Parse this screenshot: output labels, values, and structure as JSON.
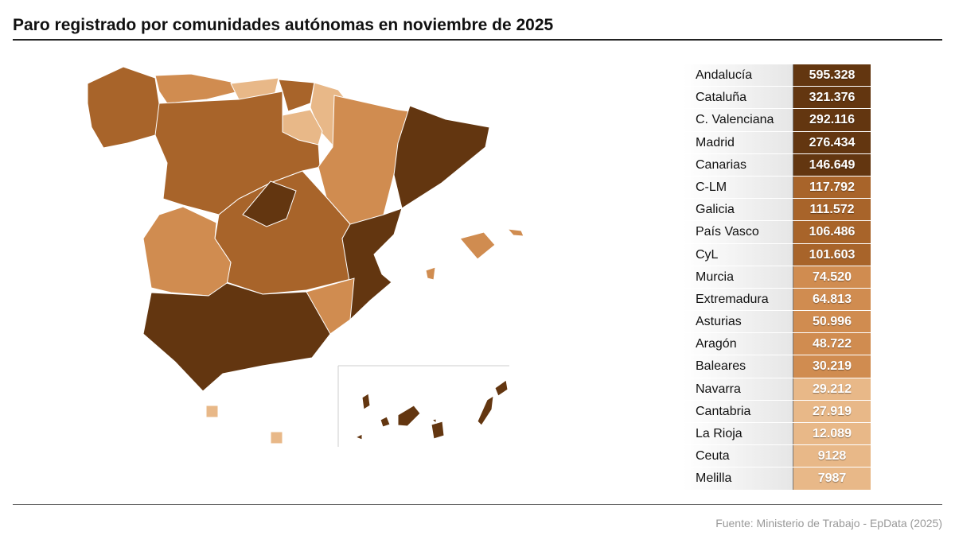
{
  "title": "Paro registrado por comunidades autónomas en noviembre de 2025",
  "source": "Fuente: Ministerio de Trabajo - EpData (2025)",
  "colors": {
    "c1": "#633610",
    "c2": "#a8642a",
    "c3": "#d08c50",
    "c4": "#e8b888"
  },
  "rows": [
    {
      "name": "Andalucía",
      "value": "595.328",
      "cls": "c1"
    },
    {
      "name": "Cataluña",
      "value": "321.376",
      "cls": "c1"
    },
    {
      "name": "C. Valenciana",
      "value": "292.116",
      "cls": "c1"
    },
    {
      "name": "Madrid",
      "value": "276.434",
      "cls": "c1"
    },
    {
      "name": "Canarias",
      "value": "146.649",
      "cls": "c1"
    },
    {
      "name": "C-LM",
      "value": "117.792",
      "cls": "c2"
    },
    {
      "name": "Galicia",
      "value": "111.572",
      "cls": "c2"
    },
    {
      "name": "País Vasco",
      "value": "106.486",
      "cls": "c2"
    },
    {
      "name": "CyL",
      "value": "101.603",
      "cls": "c2"
    },
    {
      "name": "Murcia",
      "value": "74.520",
      "cls": "c3"
    },
    {
      "name": "Extremadura",
      "value": "64.813",
      "cls": "c3"
    },
    {
      "name": "Asturias",
      "value": "50.996",
      "cls": "c3"
    },
    {
      "name": "Aragón",
      "value": "48.722",
      "cls": "c3"
    },
    {
      "name": "Baleares",
      "value": "30.219",
      "cls": "c3"
    },
    {
      "name": "Navarra",
      "value": "29.212",
      "cls": "c4"
    },
    {
      "name": "Cantabria",
      "value": "27.919",
      "cls": "c4"
    },
    {
      "name": "La Rioja",
      "value": "12.089",
      "cls": "c4"
    },
    {
      "name": "Ceuta",
      "value": "9128",
      "cls": "c4"
    },
    {
      "name": "Melilla",
      "value": "7987",
      "cls": "c4"
    }
  ]
}
